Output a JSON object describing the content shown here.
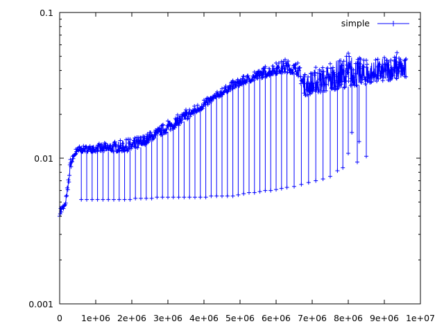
{
  "chart_data": {
    "type": "line",
    "title": "",
    "xlabel": "",
    "ylabel": "",
    "xlim": [
      0,
      10000000
    ],
    "ylim": [
      0.001,
      0.1
    ],
    "y_scale": "log",
    "grid": false,
    "legend_position": "top-right",
    "x_ticks": [
      {
        "value": 0,
        "label": "0"
      },
      {
        "value": 1000000,
        "label": "1e+06"
      },
      {
        "value": 2000000,
        "label": "2e+06"
      },
      {
        "value": 3000000,
        "label": "3e+06"
      },
      {
        "value": 4000000,
        "label": "4e+06"
      },
      {
        "value": 5000000,
        "label": "5e+06"
      },
      {
        "value": 6000000,
        "label": "6e+06"
      },
      {
        "value": 7000000,
        "label": "7e+06"
      },
      {
        "value": 8000000,
        "label": "8e+06"
      },
      {
        "value": 9000000,
        "label": "9e+06"
      },
      {
        "value": 10000000,
        "label": "1e+07"
      }
    ],
    "y_ticks": [
      {
        "value": 0.001,
        "label": "0.001"
      },
      {
        "value": 0.01,
        "label": "0.01"
      },
      {
        "value": 0.1,
        "label": "0.1"
      }
    ],
    "series": [
      {
        "name": "simple",
        "color": "#0000ff",
        "marker": "plus",
        "baseline": [
          [
            0,
            0.004
          ],
          [
            100000,
            0.0044
          ],
          [
            200000,
            0.0052
          ],
          [
            300000,
            0.0085
          ],
          [
            400000,
            0.0102
          ],
          [
            500000,
            0.011
          ],
          [
            700000,
            0.0111
          ],
          [
            1000000,
            0.0111
          ],
          [
            1500000,
            0.0111
          ],
          [
            2000000,
            0.0112
          ],
          [
            2300000,
            0.012
          ],
          [
            2600000,
            0.0135
          ],
          [
            3000000,
            0.0152
          ],
          [
            3300000,
            0.0168
          ],
          [
            3600000,
            0.019
          ],
          [
            4000000,
            0.0222
          ],
          [
            4400000,
            0.0262
          ],
          [
            4800000,
            0.03
          ],
          [
            5200000,
            0.033
          ],
          [
            5600000,
            0.0355
          ],
          [
            6000000,
            0.038
          ],
          [
            6300000,
            0.039
          ],
          [
            6600000,
            0.0375
          ],
          [
            6800000,
            0.027
          ],
          [
            7000000,
            0.0275
          ],
          [
            7300000,
            0.0285
          ],
          [
            7600000,
            0.0295
          ],
          [
            8000000,
            0.031
          ],
          [
            8400000,
            0.032
          ],
          [
            8800000,
            0.0335
          ],
          [
            9200000,
            0.0345
          ],
          [
            9600000,
            0.0355
          ]
        ],
        "spikes": [
          [
            600000,
            0.0052
          ],
          [
            750000,
            0.0052
          ],
          [
            900000,
            0.0052
          ],
          [
            1050000,
            0.0052
          ],
          [
            1200000,
            0.0052
          ],
          [
            1350000,
            0.0052
          ],
          [
            1500000,
            0.0052
          ],
          [
            1650000,
            0.0052
          ],
          [
            1800000,
            0.0052
          ],
          [
            1950000,
            0.0052
          ],
          [
            2100000,
            0.0053
          ],
          [
            2250000,
            0.0053
          ],
          [
            2400000,
            0.0053
          ],
          [
            2550000,
            0.0053
          ],
          [
            2700000,
            0.0054
          ],
          [
            2850000,
            0.0054
          ],
          [
            3000000,
            0.0054
          ],
          [
            3150000,
            0.0054
          ],
          [
            3300000,
            0.0054
          ],
          [
            3450000,
            0.0054
          ],
          [
            3600000,
            0.0054
          ],
          [
            3750000,
            0.0054
          ],
          [
            3900000,
            0.0054
          ],
          [
            4050000,
            0.0054
          ],
          [
            4200000,
            0.0055
          ],
          [
            4350000,
            0.0055
          ],
          [
            4500000,
            0.0055
          ],
          [
            4650000,
            0.0055
          ],
          [
            4800000,
            0.0055
          ],
          [
            4950000,
            0.0056
          ],
          [
            5100000,
            0.0057
          ],
          [
            5250000,
            0.0058
          ],
          [
            5400000,
            0.0058
          ],
          [
            5550000,
            0.0059
          ],
          [
            5700000,
            0.006
          ],
          [
            5850000,
            0.006
          ],
          [
            6000000,
            0.0061
          ],
          [
            6150000,
            0.0062
          ],
          [
            6300000,
            0.0063
          ],
          [
            6500000,
            0.0064
          ],
          [
            6700000,
            0.0066
          ],
          [
            6900000,
            0.0068
          ],
          [
            7100000,
            0.007
          ],
          [
            7300000,
            0.0072
          ],
          [
            7500000,
            0.0075
          ],
          [
            7700000,
            0.0082
          ],
          [
            7850000,
            0.0086
          ],
          [
            8000000,
            0.0108
          ],
          [
            8100000,
            0.015
          ],
          [
            8250000,
            0.0094
          ],
          [
            8300000,
            0.013
          ],
          [
            8500000,
            0.0103
          ]
        ],
        "peaks": [
          [
            150000,
            0.0048
          ],
          [
            300000,
            0.0098
          ],
          [
            450000,
            0.0115
          ],
          [
            550000,
            0.012
          ],
          [
            1900000,
            0.0135
          ],
          [
            2500000,
            0.015
          ],
          [
            3000000,
            0.018
          ],
          [
            3500000,
            0.0215
          ],
          [
            4000000,
            0.025
          ],
          [
            4500000,
            0.03
          ],
          [
            4800000,
            0.034
          ],
          [
            5100000,
            0.0365
          ],
          [
            5400000,
            0.039
          ],
          [
            5700000,
            0.0425
          ],
          [
            6000000,
            0.045
          ],
          [
            6250000,
            0.0475
          ],
          [
            6600000,
            0.045
          ],
          [
            6800000,
            0.0375
          ],
          [
            7100000,
            0.042
          ],
          [
            7500000,
            0.0445
          ],
          [
            8000000,
            0.0525
          ],
          [
            8500000,
            0.047
          ],
          [
            9000000,
            0.049
          ],
          [
            9350000,
            0.053
          ],
          [
            9600000,
            0.048
          ]
        ]
      }
    ]
  }
}
